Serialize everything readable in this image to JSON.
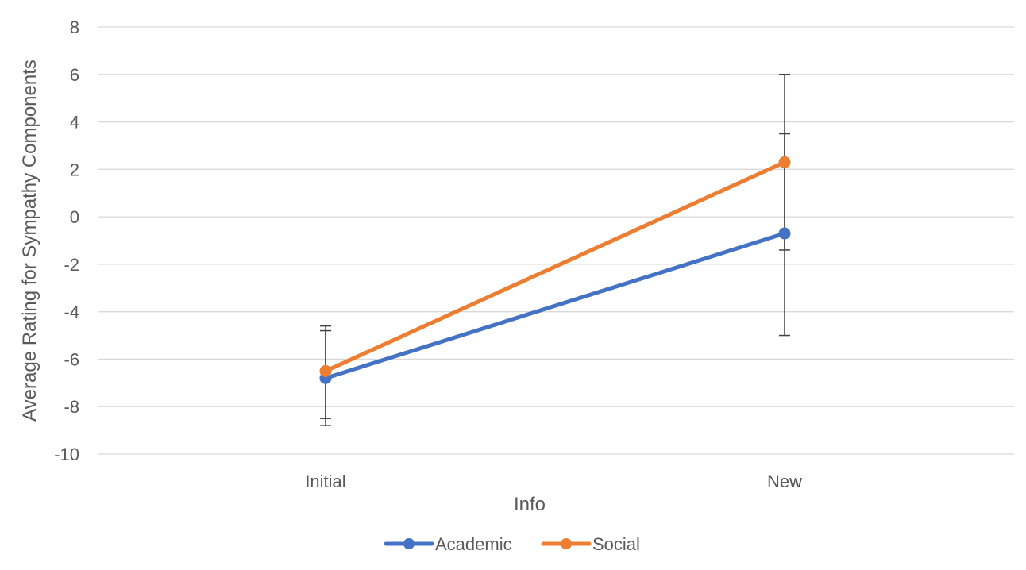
{
  "chart_data": {
    "type": "line",
    "title": "",
    "xlabel": "Info",
    "ylabel": "Average Rating for Sympathy Components",
    "categories": [
      "Initial",
      "New"
    ],
    "ylim": [
      -10,
      8
    ],
    "yticks": [
      8,
      6,
      4,
      2,
      0,
      -2,
      -4,
      -6,
      -8,
      -10
    ],
    "ytick_labels": [
      "8",
      "6",
      "4",
      "2",
      "0",
      "-2",
      "-4",
      "-6",
      "-8",
      "-10"
    ],
    "grid": true,
    "legend_position": "bottom",
    "series": [
      {
        "name": "Academic",
        "values": [
          -6.8,
          -0.7
        ],
        "error_low": [
          -8.8,
          -5.0
        ],
        "error_high": [
          -4.8,
          3.5
        ],
        "color": "#4472C4"
      },
      {
        "name": "Social",
        "values": [
          -6.5,
          2.3
        ],
        "error_low": [
          -8.5,
          -1.4
        ],
        "error_high": [
          -4.6,
          6.0
        ],
        "color": "#ED7D31"
      }
    ]
  },
  "style": {
    "grid_color": "#d9d9d9",
    "error_bar_color": "#404040"
  }
}
